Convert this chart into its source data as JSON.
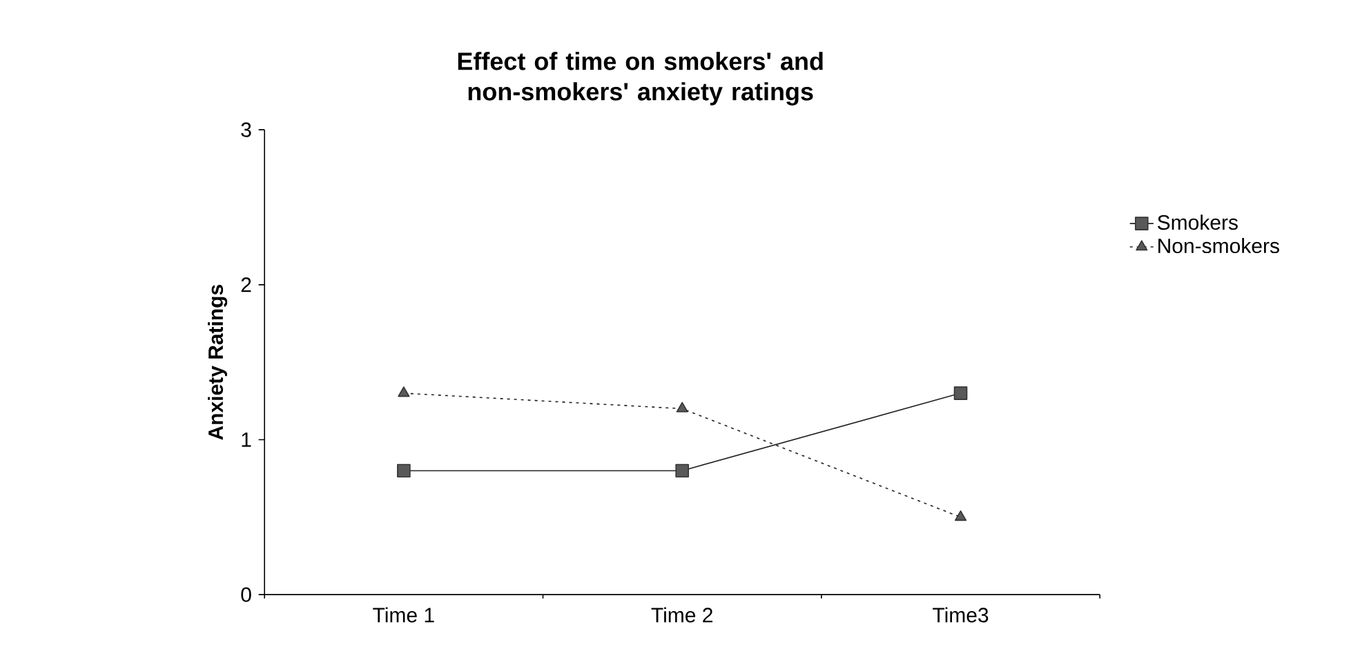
{
  "chart_data": {
    "type": "line",
    "title": "Effect of time on smokers' and non-smokers' anxiety ratings",
    "ylabel": "Anxiety Ratings",
    "categories": [
      "Time 1",
      "Time 2",
      "Time3"
    ],
    "series": [
      {
        "name": "Smokers",
        "color": "#222222",
        "values": [
          0.8,
          0.8,
          1.3
        ],
        "marker": "square",
        "line_style": "solid"
      },
      {
        "name": "Non-smokers",
        "color": "#222222",
        "values": [
          1.3,
          1.2,
          0.5
        ],
        "marker": "triangle",
        "line_style": "dotted"
      }
    ],
    "ylim": [
      0,
      3
    ],
    "yticks": [
      0,
      1,
      2,
      3
    ],
    "legend": "right"
  }
}
